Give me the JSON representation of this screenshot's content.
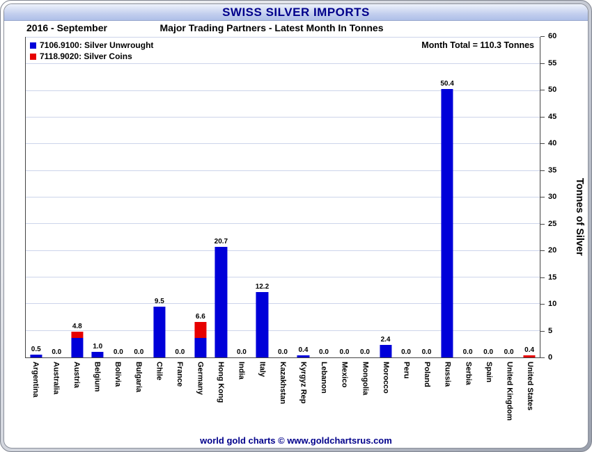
{
  "title": "SWISS SILVER IMPORTS",
  "subtitle_left": "2016 - September",
  "subtitle_center": "Major Trading Partners - Latest Month In Tonnes",
  "month_total": "Month Total = 110.3 Tonnes",
  "ylabel": "Tonnes of Silver",
  "footer": "world gold charts © www.goldchartsrus.com",
  "colors": {
    "unwrought_blue": "#0000d9",
    "coins_red": "#e60000",
    "title_navy": "#00008b",
    "gridline": "#ccd4ea"
  },
  "legend": [
    {
      "label": "7106.9100: Silver Unwrought",
      "color": "#0000d9"
    },
    {
      "label": "7118.9020: Silver Coins",
      "color": "#e60000"
    }
  ],
  "chart_data": {
    "type": "bar",
    "stacked": true,
    "title": "SWISS SILVER IMPORTS",
    "subtitle": "Major Trading Partners - Latest Month In Tonnes",
    "period": "2016 - September",
    "ylabel": "Tonnes of Silver",
    "ylim": [
      0,
      60
    ],
    "ytick_step": 5,
    "grid": "horizontal",
    "legend_position": "top-left",
    "categories": [
      "Argentina",
      "Australia",
      "Austria",
      "Belgium",
      "Bolivia",
      "Bulgaria",
      "Chile",
      "France",
      "Germany",
      "Hong Kong",
      "India",
      "Italy",
      "Kazakhstan",
      "Kyrgyz Rep",
      "Lebanon",
      "Mexico",
      "Mongolia",
      "Morocco",
      "Peru",
      "Poland",
      "Russia",
      "Serbia",
      "Spain",
      "United Kingdom",
      "United States"
    ],
    "series": [
      {
        "name": "7106.9100: Silver Unwrought",
        "color": "#0000d9",
        "values": [
          0.5,
          0.0,
          3.6,
          1.0,
          0.0,
          0.0,
          9.5,
          0.0,
          3.7,
          20.7,
          0.0,
          12.2,
          0.0,
          0.4,
          0.0,
          0.0,
          0.0,
          2.4,
          0.0,
          0.0,
          50.4,
          0.0,
          0.0,
          0.0,
          0.0
        ]
      },
      {
        "name": "7118.9020: Silver Coins",
        "color": "#e60000",
        "values": [
          0.0,
          0.0,
          1.2,
          0.0,
          0.0,
          0.0,
          0.0,
          0.0,
          2.9,
          0.0,
          0.0,
          0.0,
          0.0,
          0.0,
          0.0,
          0.0,
          0.0,
          0.0,
          0.0,
          0.0,
          0.0,
          0.0,
          0.0,
          0.0,
          0.4
        ]
      }
    ],
    "totals_labels": [
      "0.5",
      "0.0",
      "4.8",
      "1.0",
      "0.0",
      "0.0",
      "9.5",
      "0.0",
      "6.6",
      "20.7",
      "0.0",
      "12.2",
      "0.0",
      "0.4",
      "0.0",
      "0.0",
      "0.0",
      "2.4",
      "0.0",
      "0.0",
      "50.4",
      "0.0",
      "0.0",
      "0.0",
      "0.4"
    ]
  }
}
